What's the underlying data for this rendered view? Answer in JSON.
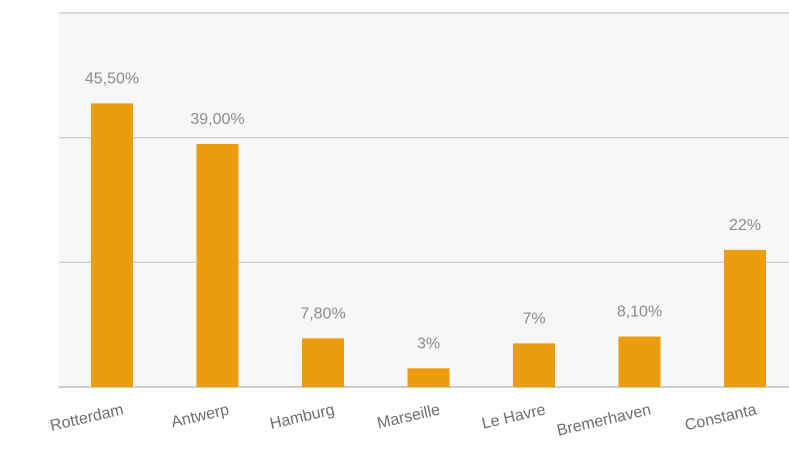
{
  "chart_data": {
    "type": "bar",
    "categories": [
      "Rotterdam",
      "Antwerp",
      "Hamburg",
      "Marseille",
      "Le Havre",
      "Bremerhaven",
      "Constanta"
    ],
    "values": [
      45.5,
      39.0,
      7.8,
      3,
      7,
      8.1,
      22
    ],
    "data_labels": [
      "45,50%",
      "39,00%",
      "7,80%",
      "3%",
      "7%",
      "8,10%",
      "22%"
    ],
    "ylim": [
      0,
      60
    ],
    "gridlines": [
      0,
      20,
      40,
      60
    ],
    "grid": true,
    "legend": "none",
    "colors": {
      "bar": "#eb9c0f",
      "grid": "#c8c8c8",
      "label": "#8c8c8c",
      "tick": "#6e6e6e"
    }
  }
}
